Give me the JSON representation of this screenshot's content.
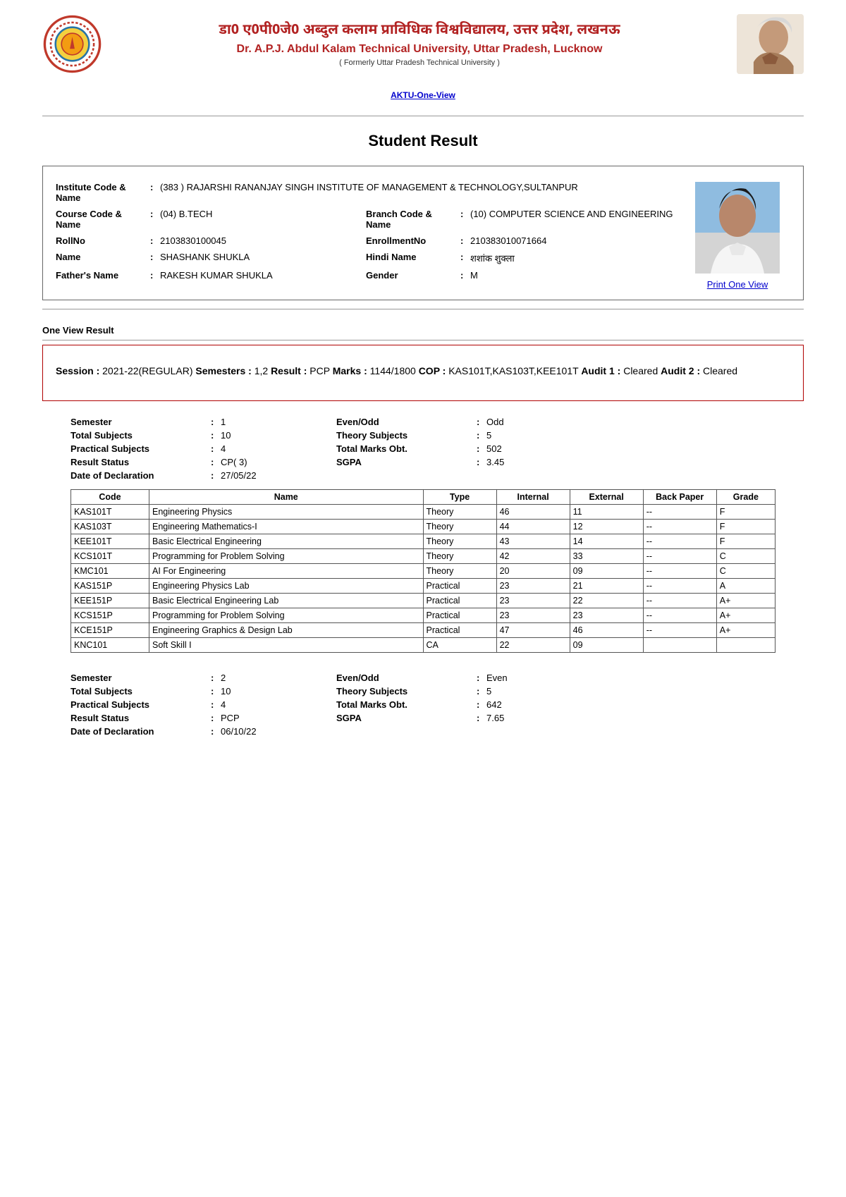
{
  "header": {
    "hindi_title": "डा0 ए0पी0जे0 अब्दुल कलाम प्राविधिक विश्वविद्यालय, उत्तर प्रदेश, लखनऊ",
    "eng_title": "Dr. A.P.J. Abdul Kalam Technical University, Uttar Pradesh, Lucknow",
    "formerly": "( Formerly Uttar Pradesh Technical University )",
    "one_view_link": "AKTU-One-View"
  },
  "page_title": "Student Result",
  "student": {
    "inst_label": "Institute Code & Name",
    "inst_value": "(383 ) RAJARSHI RANANJAY SINGH INSTITUTE OF MANAGEMENT & TECHNOLOGY,SULTANPUR",
    "course_label": "Course Code & Name",
    "course_value": "(04) B.TECH",
    "branch_label": "Branch Code & Name",
    "branch_value": "(10) COMPUTER SCIENCE AND ENGINEERING",
    "rollno_label": "RollNo",
    "rollno_value": "2103830100045",
    "enroll_label": "EnrollmentNo",
    "enroll_value": "210383010071664",
    "name_label": "Name",
    "name_value": "SHASHANK SHUKLA",
    "hindi_label": "Hindi Name",
    "hindi_value": "शशांक शुक्ला",
    "father_label": "Father's Name",
    "father_value": "RAKESH KUMAR SHUKLA",
    "gender_label": "Gender",
    "gender_value": "M",
    "print_link": "Print One View"
  },
  "ovr_label": "One View Result",
  "session_line": {
    "session_l": "Session :",
    "session_v": "2021-22(REGULAR)",
    "sem_l": "Semesters :",
    "sem_v": "1,2",
    "result_l": "Result :",
    "result_v": "PCP",
    "marks_l": "Marks :",
    "marks_v": "1144/1800",
    "cop_l": "COP :",
    "cop_v": "KAS101T,KAS103T,KEE101T",
    "a1_l": "Audit 1 :",
    "a1_v": "Cleared",
    "a2_l": "Audit 2 :",
    "a2_v": "Cleared"
  },
  "sem1": {
    "summary": {
      "semester_l": "Semester",
      "semester_v": "1",
      "eo_l": "Even/Odd",
      "eo_v": "Odd",
      "total_l": "Total Subjects",
      "total_v": "10",
      "theory_l": "Theory Subjects",
      "theory_v": "5",
      "prac_l": "Practical Subjects",
      "prac_v": "4",
      "tm_l": "Total Marks Obt.",
      "tm_v": "502",
      "rs_l": "Result Status",
      "rs_v": "CP( 3)",
      "sgpa_l": "SGPA",
      "sgpa_v": "3.45",
      "dod_l": "Date of Declaration",
      "dod_v": "27/05/22"
    },
    "columns": [
      "Code",
      "Name",
      "Type",
      "Internal",
      "External",
      "Back Paper",
      "Grade"
    ],
    "rows": [
      [
        "KAS101T",
        "Engineering Physics",
        "Theory",
        "46",
        "11",
        "--",
        "F"
      ],
      [
        "KAS103T",
        "Engineering Mathematics-I",
        "Theory",
        "44",
        "12",
        "--",
        "F"
      ],
      [
        "KEE101T",
        "Basic Electrical Engineering",
        "Theory",
        "43",
        "14",
        "--",
        "F"
      ],
      [
        "KCS101T",
        "Programming for Problem Solving",
        "Theory",
        "42",
        "33",
        "--",
        "C"
      ],
      [
        "KMC101",
        "AI For Engineering",
        "Theory",
        "20",
        "09",
        "--",
        "C"
      ],
      [
        "KAS151P",
        "Engineering Physics Lab",
        "Practical",
        "23",
        "21",
        "--",
        "A"
      ],
      [
        "KEE151P",
        "Basic Electrical Engineering Lab",
        "Practical",
        "23",
        "22",
        "--",
        "A+"
      ],
      [
        "KCS151P",
        "Programming for Problem Solving",
        "Practical",
        "23",
        "23",
        "--",
        "A+"
      ],
      [
        "KCE151P",
        "Engineering Graphics & Design Lab",
        "Practical",
        "47",
        "46",
        "--",
        "A+"
      ],
      [
        "KNC101",
        "Soft Skill I",
        "CA",
        "22",
        "09",
        "",
        ""
      ]
    ]
  },
  "sem2": {
    "summary": {
      "semester_l": "Semester",
      "semester_v": "2",
      "eo_l": "Even/Odd",
      "eo_v": "Even",
      "total_l": "Total Subjects",
      "total_v": "10",
      "theory_l": "Theory Subjects",
      "theory_v": "5",
      "prac_l": "Practical Subjects",
      "prac_v": "4",
      "tm_l": "Total Marks Obt.",
      "tm_v": "642",
      "rs_l": "Result Status",
      "rs_v": "PCP",
      "sgpa_l": "SGPA",
      "sgpa_v": "7.65",
      "dod_l": "Date of Declaration",
      "dod_v": "06/10/22"
    }
  }
}
